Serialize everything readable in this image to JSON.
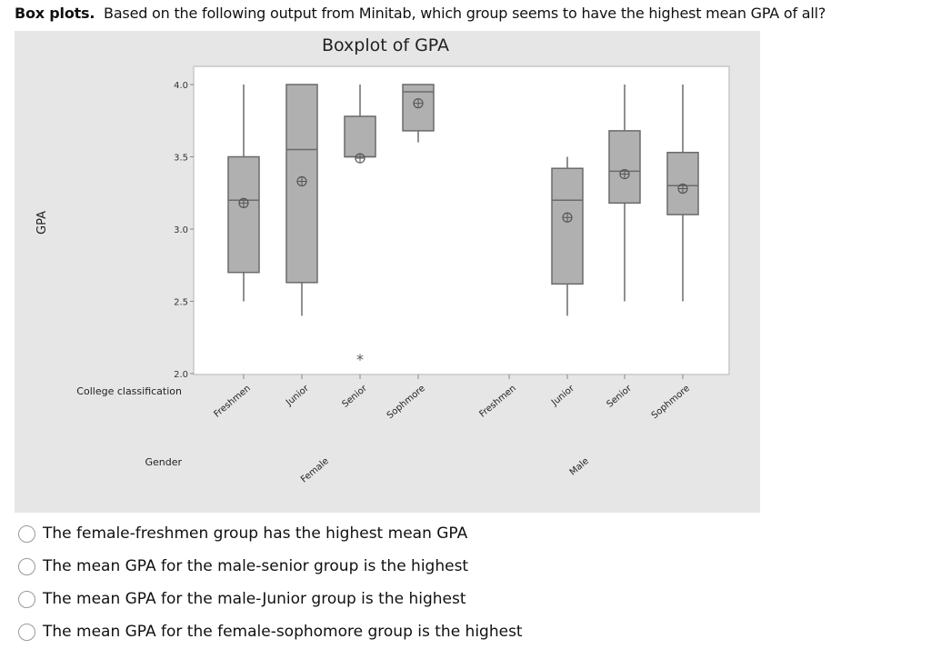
{
  "question": {
    "bold": "Box plots.",
    "text": "Based on the following output from Minitab, which group seems to have the highest mean GPA of all?"
  },
  "chart_data": {
    "type": "boxplot",
    "title": "Boxplot of GPA",
    "ylabel": "GPA",
    "ylim": [
      2.0,
      4.0
    ],
    "yticks": [
      "2.0",
      "2.5",
      "3.0",
      "3.5",
      "4.0"
    ],
    "x_row_labels": [
      "College classification",
      "Gender"
    ],
    "genders": [
      "Female",
      "Male"
    ],
    "groups": [
      {
        "gender": "Female",
        "class": "Freshmen",
        "min": 2.5,
        "q1": 2.7,
        "median": 3.2,
        "q3": 3.5,
        "max": 4.0,
        "mean": 3.18,
        "outliers": []
      },
      {
        "gender": "Female",
        "class": "Junior",
        "min": 2.4,
        "q1": 2.63,
        "median": 3.55,
        "q3": 4.0,
        "max": 4.0,
        "mean": 3.33,
        "outliers": []
      },
      {
        "gender": "Female",
        "class": "Senior",
        "min": 3.5,
        "q1": 3.5,
        "median": 3.5,
        "q3": 3.78,
        "max": 4.0,
        "mean": 3.49,
        "outliers": [
          2.1
        ]
      },
      {
        "gender": "Female",
        "class": "Sophmore",
        "min": 3.6,
        "q1": 3.68,
        "median": 3.95,
        "q3": 4.0,
        "max": 4.0,
        "mean": 3.87,
        "outliers": []
      },
      {
        "gender": "Male",
        "class": "Freshmen",
        "min": null,
        "q1": null,
        "median": null,
        "q3": null,
        "max": null,
        "mean": null,
        "outliers": []
      },
      {
        "gender": "Male",
        "class": "Junior",
        "min": 2.4,
        "q1": 2.62,
        "median": 3.2,
        "q3": 3.42,
        "max": 3.5,
        "mean": 3.08,
        "outliers": []
      },
      {
        "gender": "Male",
        "class": "Senior",
        "min": 2.5,
        "q1": 3.18,
        "median": 3.4,
        "q3": 3.68,
        "max": 4.0,
        "mean": 3.38,
        "outliers": []
      },
      {
        "gender": "Male",
        "class": "Sophmore",
        "min": 2.5,
        "q1": 3.1,
        "median": 3.3,
        "q3": 3.53,
        "max": 4.0,
        "mean": 3.28,
        "outliers": []
      }
    ],
    "colors": {
      "box": "#b0b0b0",
      "line": "#6a6a6a",
      "panel": "#e6e6e6"
    }
  },
  "options": [
    "The female-freshmen group has the highest mean GPA",
    "The mean GPA for the male-senior group is the highest",
    "The mean GPA for the male-Junior group is the highest",
    "The mean GPA for the female-sophomore group is the highest"
  ]
}
